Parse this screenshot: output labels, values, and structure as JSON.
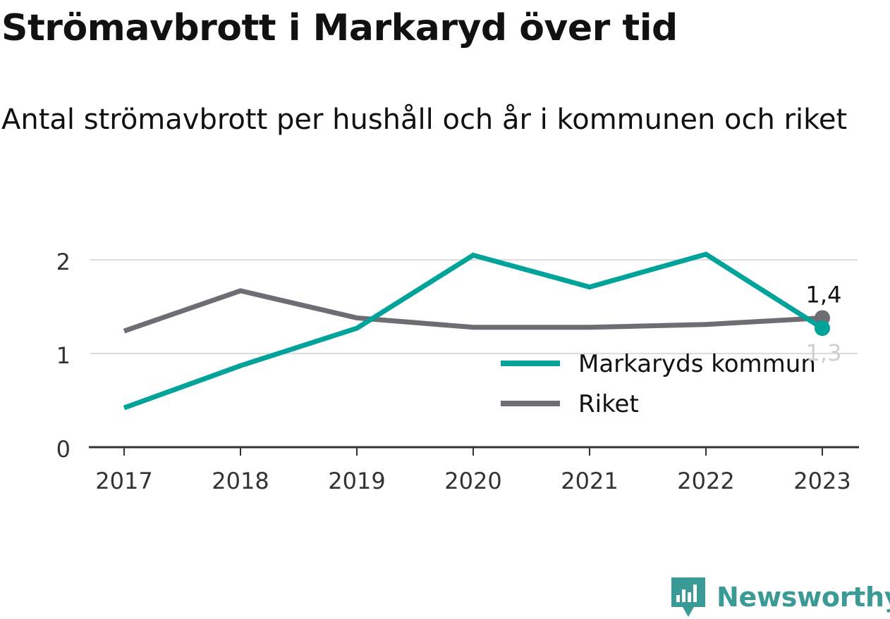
{
  "title": "Strömavbrott i Markaryd över tid",
  "subtitle": "Antal strömavbrott per hushåll och år i kommunen och riket",
  "logo": {
    "text": "Newsworthy",
    "icon": "newsworthy-logo-icon"
  },
  "colors": {
    "kommun": "#00a39a",
    "riket": "#6e6d73",
    "grid": "#dcdcdc",
    "axis": "#333333",
    "text": "#333333"
  },
  "chart_data": {
    "type": "line",
    "x": [
      "2017",
      "2018",
      "2019",
      "2020",
      "2021",
      "2022",
      "2023"
    ],
    "ylim": [
      0,
      2.5
    ],
    "yticks": [
      "0",
      "1",
      "2"
    ],
    "grid": true,
    "legend_position": "bottom-right",
    "series": [
      {
        "name": "Markaryds kommun",
        "color": "#00a39a",
        "values": [
          0.42,
          0.87,
          1.27,
          2.05,
          1.71,
          2.06,
          1.27
        ],
        "end_label": "1,3"
      },
      {
        "name": "Riket",
        "color": "#6e6d73",
        "values": [
          1.24,
          1.67,
          1.38,
          1.28,
          1.28,
          1.31,
          1.38
        ],
        "end_label": "1,4"
      }
    ]
  }
}
